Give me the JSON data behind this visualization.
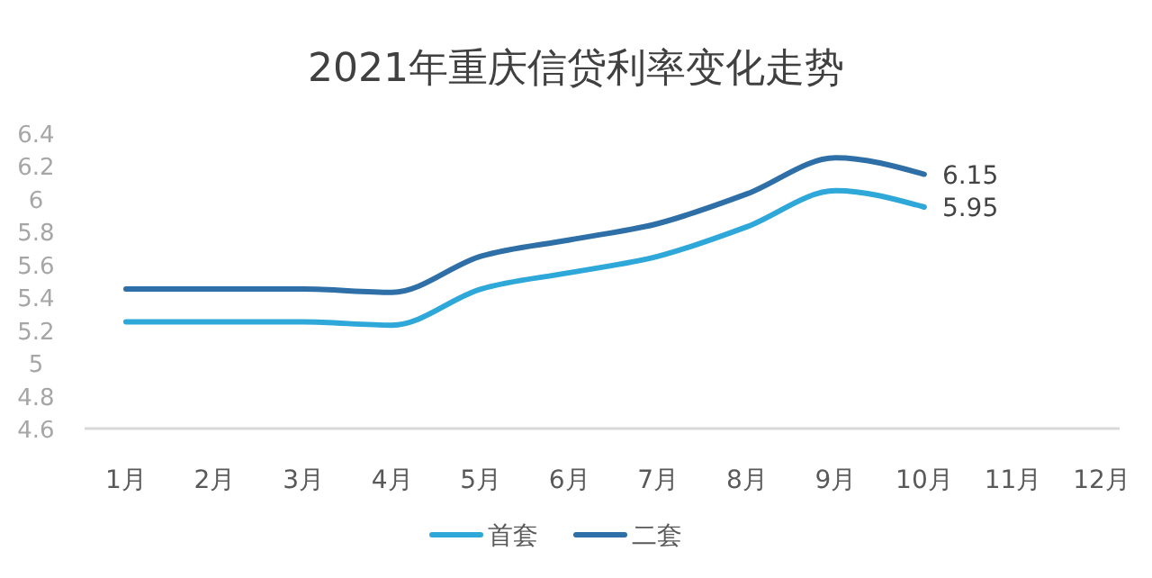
{
  "chart_data": {
    "type": "line",
    "title": "2021年重庆信贷利率变化走势",
    "categories": [
      "1月",
      "2月",
      "3月",
      "4月",
      "5月",
      "6月",
      "7月",
      "8月",
      "9月",
      "10月",
      "11月",
      "12月"
    ],
    "series": [
      {
        "name": "首套",
        "color": "#2ea7d9",
        "values": [
          5.25,
          5.25,
          5.25,
          5.23,
          5.45,
          5.55,
          5.65,
          5.83,
          6.05,
          5.95,
          null,
          null
        ],
        "value_labels": [
          null,
          null,
          null,
          null,
          null,
          null,
          null,
          null,
          null,
          "5.95",
          null,
          null
        ]
      },
      {
        "name": "二套",
        "color": "#2d6fa6",
        "values": [
          5.45,
          5.45,
          5.45,
          5.43,
          5.65,
          5.75,
          5.85,
          6.03,
          6.25,
          6.15,
          null,
          null
        ],
        "value_labels": [
          null,
          null,
          null,
          null,
          null,
          null,
          null,
          null,
          null,
          "6.15",
          null,
          null
        ]
      }
    ],
    "ylim": [
      4.6,
      6.4
    ],
    "yticks": [
      4.6,
      4.8,
      5,
      5.2,
      5.4,
      5.6,
      5.8,
      6,
      6.2,
      6.4
    ],
    "grid": false,
    "legend": "bottom",
    "marker": "none",
    "line_style": "solid"
  }
}
